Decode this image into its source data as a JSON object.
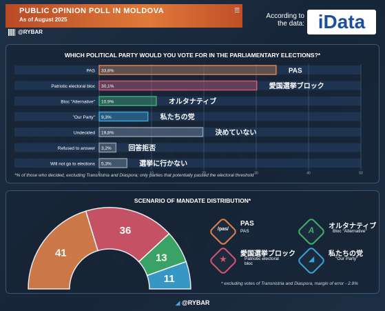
{
  "header": {
    "title": "PUBLIC OPINION POLL IN MOLDOVA",
    "subtitle": "As of August 2025",
    "handle": "@RYBAR",
    "menu_glyph": "☰",
    "according": "According to the data:",
    "logo_text": "iData"
  },
  "chart_data": [
    {
      "type": "bar",
      "title": "WHICH POLITICAL PARTY WOULD YOU VOTE FOR IN THE PARLIAMENTARY ELECTIONS?*",
      "categories": [
        "PAS",
        "Patriotic electoral bloc",
        "Bloc \"Alternative\"",
        "\"Our Party\"",
        "Undecided",
        "Refused to answer",
        "Will not go to elections"
      ],
      "values": [
        33.8,
        30.1,
        10.9,
        9.3,
        19.8,
        3.2,
        5.3
      ],
      "value_labels": [
        "33,8%",
        "30,1%",
        "10,9%",
        "9,3%",
        "19,8%",
        "3,2%",
        "5,3%"
      ],
      "japanese_labels": [
        "PAS",
        "愛国選挙ブロック",
        "オルタナティブ",
        "私たちの党",
        "決めていない",
        "回答拒否",
        "選挙に行かない"
      ],
      "colors": [
        "#e0814a",
        "#d9566a",
        "#3fb06a",
        "#3aa3d4",
        "#8a96a4",
        "#8a96a4",
        "#8a96a4"
      ],
      "xlim": [
        0,
        50
      ],
      "xticks": [
        0,
        10,
        20,
        30,
        40,
        50
      ],
      "grid": true,
      "note": "*% of those who decided, excluding Transnistria and Diaspora; only parties that potentially passed the electoral threshold"
    },
    {
      "type": "pie",
      "title": "SCENARIO OF MANDATE DISTRIBUTION*",
      "style": "half-donut",
      "categories": [
        "PAS",
        "Patriotic electoral bloc",
        "Bloc \"Alternative\"",
        "\"Our Party\""
      ],
      "values": [
        41,
        36,
        13,
        11
      ],
      "colors": [
        "#e0814a",
        "#d9566a",
        "#3fb06a",
        "#3aa3d4"
      ],
      "note": "* excluding votes of Transnistria and Diaspora, margin of error - 2.9%"
    }
  ],
  "legend": [
    {
      "name": "PAS",
      "en": "PAS",
      "badge": "/pas/",
      "color": "#e0814a"
    },
    {
      "name": "オルタナティブ",
      "en": "Bloc \"Alternative\"",
      "badge": "A",
      "color": "#3fb06a"
    },
    {
      "name": "愛国選挙ブロック",
      "en": "Patriotic electoral bloc",
      "badge": "★",
      "color": "#d9566a"
    },
    {
      "name": "私たちの党",
      "en": "\"Our Party\"",
      "badge": "◢",
      "color": "#3aa3d4"
    }
  ],
  "footer": {
    "handle": "@RYBAR"
  }
}
